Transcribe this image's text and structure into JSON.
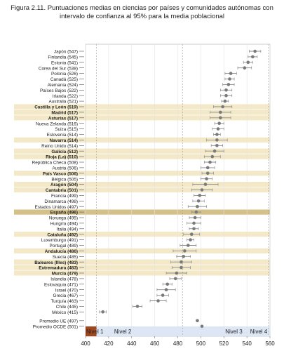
{
  "title": "Figura 2.11. Puntuaciones medias en ciencias por países y comunidades autónomas con intervalo de confianza al 95% para la media poblacional",
  "chart_data": {
    "type": "scatter",
    "orientation": "horizontal",
    "title": "Figura 2.11. Puntuaciones medias en ciencias por países y comunidades autónomas con intervalo de confianza al 95% para la media poblacional",
    "xlim": [
      400,
      560
    ],
    "xticks": [
      400,
      420,
      440,
      460,
      480,
      500,
      520,
      540,
      560
    ],
    "colors": {
      "point": "#7a7a7a",
      "highlight": "#f3e9c8",
      "spain": "#d6c08a",
      "nivel1": "#a0461e",
      "nivel_band": "#dce6f5"
    },
    "levels": [
      {
        "label": "Nivel 1",
        "from": 400,
        "to": 409.5
      },
      {
        "label": "Nivel 2",
        "from": 409.5,
        "to": 484.1
      },
      {
        "label": "Nivel 3",
        "from": 484.1,
        "to": 558.7
      },
      {
        "label": "Nivel 4",
        "from": 558.7,
        "to": 560
      }
    ],
    "rows": [
      {
        "label": "Japón (547)",
        "value": 547,
        "ci": [
          542,
          552
        ],
        "bold": false,
        "highlight": false
      },
      {
        "label": "Finlandia (545)",
        "value": 545,
        "ci": [
          541,
          549
        ],
        "bold": false,
        "highlight": false
      },
      {
        "label": "Estonia (541)",
        "value": 541,
        "ci": [
          537,
          545
        ],
        "bold": false,
        "highlight": false
      },
      {
        "label": "Corea del Sur (538)",
        "value": 538,
        "ci": [
          532,
          544
        ],
        "bold": false,
        "highlight": false
      },
      {
        "label": "Polonia (526)",
        "value": 526,
        "ci": [
          521,
          531
        ],
        "bold": false,
        "highlight": false
      },
      {
        "label": "Canadá (525)",
        "value": 525,
        "ci": [
          521,
          529
        ],
        "bold": false,
        "highlight": false
      },
      {
        "label": "Alemania (524)",
        "value": 524,
        "ci": [
          519,
          529
        ],
        "bold": false,
        "highlight": false
      },
      {
        "label": "Países Bajos (522)",
        "value": 522,
        "ci": [
          517,
          527
        ],
        "bold": false,
        "highlight": false
      },
      {
        "label": "Irlanda (522)",
        "value": 522,
        "ci": [
          517,
          527
        ],
        "bold": false,
        "highlight": false
      },
      {
        "label": "Australia (521)",
        "value": 521,
        "ci": [
          518,
          524
        ],
        "bold": false,
        "highlight": false
      },
      {
        "label": "Castilla y León (519)",
        "value": 519,
        "ci": [
          511,
          527
        ],
        "bold": true,
        "highlight": true
      },
      {
        "label": "Madrid (517)",
        "value": 517,
        "ci": [
          508,
          526
        ],
        "bold": true,
        "highlight": true
      },
      {
        "label": "Asturias (517)",
        "value": 517,
        "ci": [
          508,
          526
        ],
        "bold": true,
        "highlight": true
      },
      {
        "label": "Nueva Zelanda (516)",
        "value": 516,
        "ci": [
          512,
          520
        ],
        "bold": false,
        "highlight": false
      },
      {
        "label": "Suiza (515)",
        "value": 515,
        "ci": [
          510,
          520
        ],
        "bold": false,
        "highlight": false
      },
      {
        "label": "Eslovenia (514)",
        "value": 514,
        "ci": [
          511,
          517
        ],
        "bold": false,
        "highlight": false
      },
      {
        "label": "Navarra (514)",
        "value": 514,
        "ci": [
          505,
          523
        ],
        "bold": true,
        "highlight": true
      },
      {
        "label": "Reino Unido (514)",
        "value": 514,
        "ci": [
          509,
          519
        ],
        "bold": false,
        "highlight": false
      },
      {
        "label": "Galicia (512)",
        "value": 512,
        "ci": [
          504,
          520
        ],
        "bold": true,
        "highlight": true
      },
      {
        "label": "Rioja (La) (510)",
        "value": 510,
        "ci": [
          503,
          517
        ],
        "bold": true,
        "highlight": true
      },
      {
        "label": "República Checa (508)",
        "value": 508,
        "ci": [
          503,
          513
        ],
        "bold": false,
        "highlight": false
      },
      {
        "label": "Austria (506)",
        "value": 506,
        "ci": [
          500,
          512
        ],
        "bold": false,
        "highlight": false
      },
      {
        "label": "País Vasco (506)",
        "value": 506,
        "ci": [
          501,
          511
        ],
        "bold": true,
        "highlight": true
      },
      {
        "label": "Bélgica (505)",
        "value": 505,
        "ci": [
          500,
          510
        ],
        "bold": false,
        "highlight": false
      },
      {
        "label": "Aragón (504)",
        "value": 504,
        "ci": [
          493,
          515
        ],
        "bold": true,
        "highlight": true
      },
      {
        "label": "Cantabria (501)",
        "value": 501,
        "ci": [
          492,
          510
        ],
        "bold": true,
        "highlight": true
      },
      {
        "label": "Francia (499)",
        "value": 499,
        "ci": [
          494,
          504
        ],
        "bold": false,
        "highlight": false
      },
      {
        "label": "Dinamarca (498)",
        "value": 498,
        "ci": [
          493,
          503
        ],
        "bold": false,
        "highlight": false
      },
      {
        "label": "Estados Unidos (497)",
        "value": 497,
        "ci": [
          489,
          505
        ],
        "bold": false,
        "highlight": false
      },
      {
        "label": "España (496)",
        "value": 496,
        "ci": [
          492,
          500
        ],
        "bold": true,
        "highlight": true,
        "spain": true
      },
      {
        "label": "Noruega (495)",
        "value": 495,
        "ci": [
          490,
          500
        ],
        "bold": false,
        "highlight": false
      },
      {
        "label": "Hungría (494)",
        "value": 494,
        "ci": [
          488,
          500
        ],
        "bold": false,
        "highlight": false
      },
      {
        "label": "Italia (494)",
        "value": 494,
        "ci": [
          490,
          498
        ],
        "bold": false,
        "highlight": false
      },
      {
        "label": "Cataluña (492)",
        "value": 492,
        "ci": [
          485,
          499
        ],
        "bold": true,
        "highlight": true
      },
      {
        "label": "Luxemburgo (491)",
        "value": 491,
        "ci": [
          488,
          494
        ],
        "bold": false,
        "highlight": false
      },
      {
        "label": "Portugal (489)",
        "value": 489,
        "ci": [
          482,
          496
        ],
        "bold": false,
        "highlight": false
      },
      {
        "label": "Andalucía (486)",
        "value": 486,
        "ci": [
          476,
          496
        ],
        "bold": true,
        "highlight": true
      },
      {
        "label": "Suecia (485)",
        "value": 485,
        "ci": [
          479,
          491
        ],
        "bold": false,
        "highlight": false
      },
      {
        "label": "Baleares (Illes) (483)",
        "value": 483,
        "ci": [
          474,
          492
        ],
        "bold": true,
        "highlight": true
      },
      {
        "label": "Extremadura (483)",
        "value": 483,
        "ci": [
          475,
          491
        ],
        "bold": true,
        "highlight": true
      },
      {
        "label": "Murcia (479)",
        "value": 479,
        "ci": [
          470,
          488
        ],
        "bold": true,
        "highlight": true
      },
      {
        "label": "Islandia (478)",
        "value": 478,
        "ci": [
          473,
          483
        ],
        "bold": false,
        "highlight": false
      },
      {
        "label": "Eslovaquia (471)",
        "value": 471,
        "ci": [
          467,
          475
        ],
        "bold": false,
        "highlight": false
      },
      {
        "label": "Israel (470)",
        "value": 470,
        "ci": [
          462,
          478
        ],
        "bold": false,
        "highlight": false
      },
      {
        "label": "Grecia (467)",
        "value": 467,
        "ci": [
          462,
          472
        ],
        "bold": false,
        "highlight": false
      },
      {
        "label": "Turquía (463)",
        "value": 463,
        "ci": [
          456,
          470
        ],
        "bold": false,
        "highlight": false
      },
      {
        "label": "Chile (445)",
        "value": 445,
        "ci": [
          441,
          449
        ],
        "bold": false,
        "highlight": false
      },
      {
        "label": "México (415)",
        "value": 415,
        "ci": [
          412,
          418
        ],
        "bold": false,
        "highlight": false
      }
    ],
    "averages": [
      {
        "label": "Promedio UE (497)",
        "value": 497
      },
      {
        "label": "Promedio OCDE (501)",
        "value": 501
      }
    ]
  }
}
